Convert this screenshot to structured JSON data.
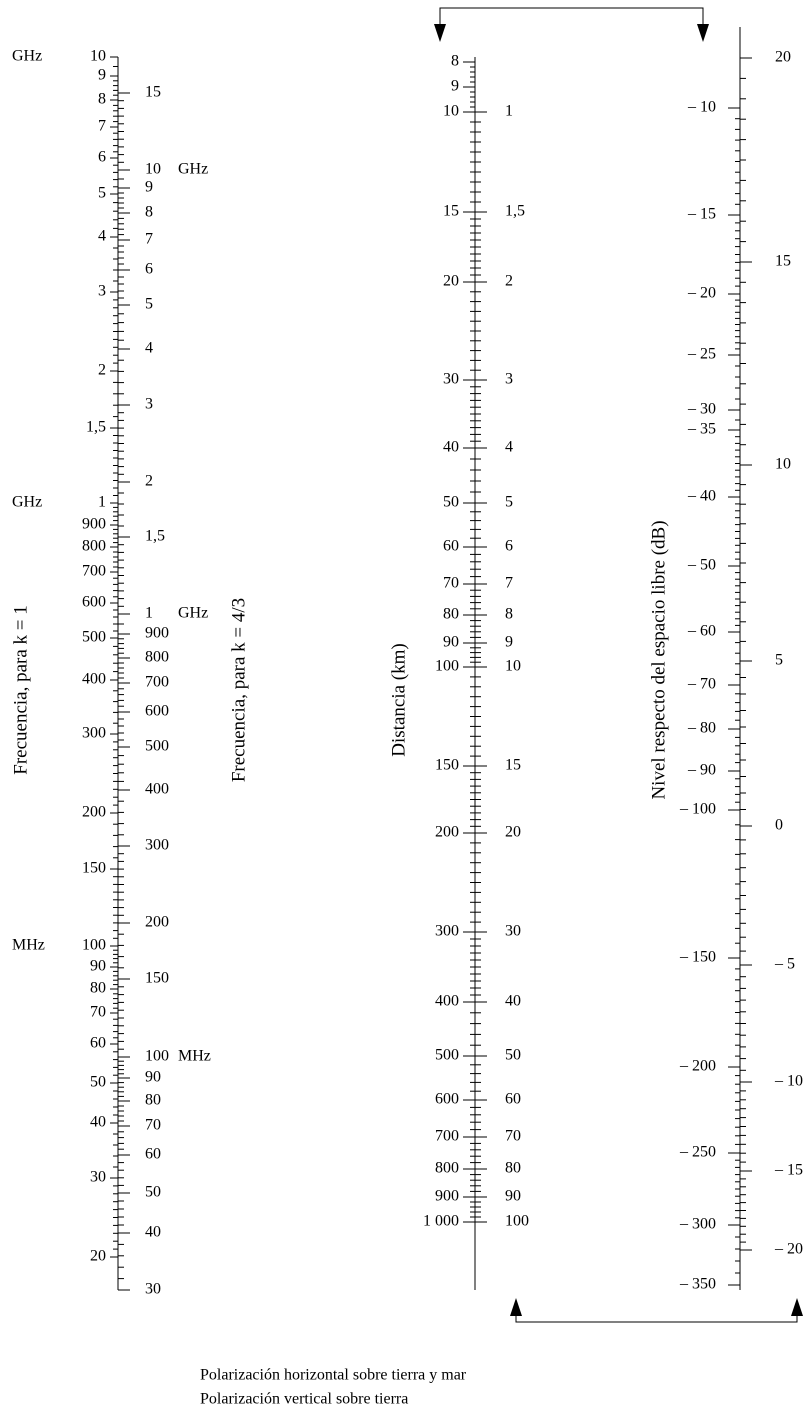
{
  "scales": [
    {
      "title": "Frecuencia, para k = 1",
      "ticks": [
        {
          "label": "10",
          "unit": "GHz"
        },
        {
          "label": "9"
        },
        {
          "label": "8"
        },
        {
          "label": "7"
        },
        {
          "label": "6"
        },
        {
          "label": "5"
        },
        {
          "label": "4"
        },
        {
          "label": "3"
        },
        {
          "label": "2"
        },
        {
          "label": "1,5"
        },
        {
          "label": "1",
          "unit": "GHz"
        },
        {
          "label": "900"
        },
        {
          "label": "800"
        },
        {
          "label": "700"
        },
        {
          "label": "600"
        },
        {
          "label": "500"
        },
        {
          "label": "400"
        },
        {
          "label": "300"
        },
        {
          "label": "200"
        },
        {
          "label": "150"
        },
        {
          "label": "100",
          "unit": "MHz"
        },
        {
          "label": "90"
        },
        {
          "label": "80"
        },
        {
          "label": "70"
        },
        {
          "label": "60"
        },
        {
          "label": "50"
        },
        {
          "label": "40"
        },
        {
          "label": "30"
        },
        {
          "label": "20"
        }
      ]
    },
    {
      "title": "Frecuencia, para k = 4/3",
      "ticks": [
        {
          "label": "15"
        },
        {
          "label": "10",
          "unit": "GHz"
        },
        {
          "label": "9"
        },
        {
          "label": "8"
        },
        {
          "label": "7"
        },
        {
          "label": "6"
        },
        {
          "label": "5"
        },
        {
          "label": "4"
        },
        {
          "label": "3"
        },
        {
          "label": "2"
        },
        {
          "label": "1,5"
        },
        {
          "label": "1",
          "unit": "GHz"
        },
        {
          "label": "900"
        },
        {
          "label": "800"
        },
        {
          "label": "700"
        },
        {
          "label": "600"
        },
        {
          "label": "500"
        },
        {
          "label": "400"
        },
        {
          "label": "300"
        },
        {
          "label": "200"
        },
        {
          "label": "150"
        },
        {
          "label": "100",
          "unit": "MHz"
        },
        {
          "label": "90"
        },
        {
          "label": "80"
        },
        {
          "label": "70"
        },
        {
          "label": "60"
        },
        {
          "label": "50"
        },
        {
          "label": "40"
        },
        {
          "label": "30"
        }
      ]
    },
    {
      "title": "Distancia (km)",
      "ticks": [
        {
          "label": "8"
        },
        {
          "label": "9"
        },
        {
          "label": "10"
        },
        {
          "label": "15"
        },
        {
          "label": "20"
        },
        {
          "label": "30"
        },
        {
          "label": "40"
        },
        {
          "label": "50"
        },
        {
          "label": "60"
        },
        {
          "label": "70"
        },
        {
          "label": "80"
        },
        {
          "label": "90"
        },
        {
          "label": "100"
        },
        {
          "label": "150"
        },
        {
          "label": "200"
        },
        {
          "label": "300"
        },
        {
          "label": "400"
        },
        {
          "label": "500"
        },
        {
          "label": "600"
        },
        {
          "label": "700"
        },
        {
          "label": "800"
        },
        {
          "label": "900"
        },
        {
          "label": "1 000"
        }
      ]
    },
    {
      "ticks": [
        {
          "label": "1"
        },
        {
          "label": "1,5"
        },
        {
          "label": "2"
        },
        {
          "label": "3"
        },
        {
          "label": "4"
        },
        {
          "label": "5"
        },
        {
          "label": "6"
        },
        {
          "label": "7"
        },
        {
          "label": "8"
        },
        {
          "label": "9"
        },
        {
          "label": "10"
        },
        {
          "label": "15"
        },
        {
          "label": "20"
        },
        {
          "label": "30"
        },
        {
          "label": "40"
        },
        {
          "label": "50"
        },
        {
          "label": "60"
        },
        {
          "label": "70"
        },
        {
          "label": "80"
        },
        {
          "label": "90"
        },
        {
          "label": "100"
        }
      ]
    },
    {
      "title": "Nivel respecto del espacio libre (dB)",
      "ticks": [
        {
          "label": "– 10"
        },
        {
          "label": "– 15"
        },
        {
          "label": "– 20"
        },
        {
          "label": "– 25"
        },
        {
          "label": "– 30"
        },
        {
          "label": "– 35"
        },
        {
          "label": "– 40"
        },
        {
          "label": "– 50"
        },
        {
          "label": "– 60"
        },
        {
          "label": "– 70"
        },
        {
          "label": "– 80"
        },
        {
          "label": "– 90"
        },
        {
          "label": "– 100"
        },
        {
          "label": "– 150"
        },
        {
          "label": "– 200"
        },
        {
          "label": "– 250"
        },
        {
          "label": "– 300"
        },
        {
          "label": "– 350"
        }
      ]
    },
    {
      "ticks": [
        {
          "label": "20"
        },
        {
          "label": "15"
        },
        {
          "label": "10"
        },
        {
          "label": "5"
        },
        {
          "label": "0"
        },
        {
          "label": "– 5"
        },
        {
          "label": "– 10"
        },
        {
          "label": "– 15"
        },
        {
          "label": "– 20"
        }
      ]
    }
  ],
  "legend": [
    "Polarización horizontal sobre tierra y mar",
    "Polarización vertical sobre tierra"
  ]
}
